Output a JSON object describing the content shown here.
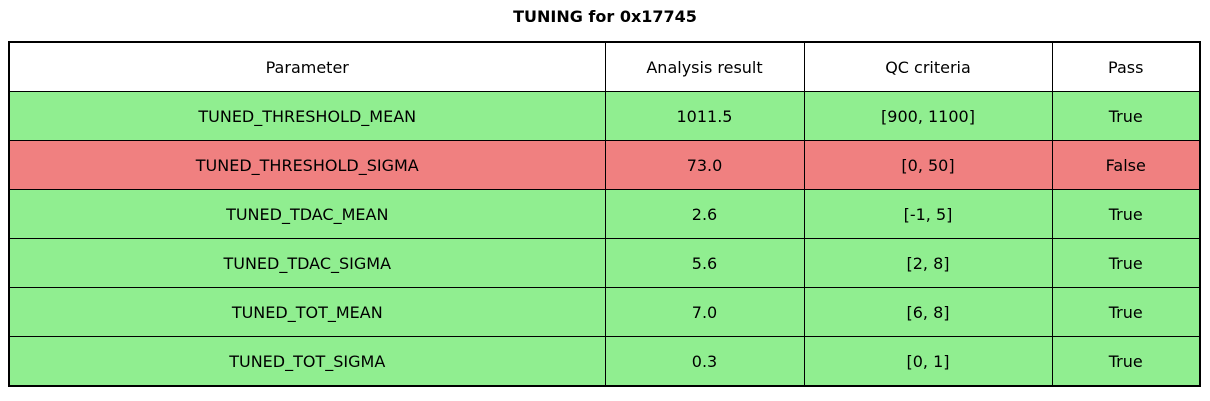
{
  "title": "TUNING for 0x17745",
  "colors": {
    "pass_green": "#90ee90",
    "fail_red": "#f08080",
    "header_bg": "#ffffff",
    "border": "#000000",
    "text": "#000000"
  },
  "chart_data": {
    "type": "table",
    "title": "TUNING for 0x17745",
    "columns": [
      "Parameter",
      "Analysis result",
      "QC criteria",
      "Pass"
    ],
    "rows": [
      {
        "parameter": "TUNED_THRESHOLD_MEAN",
        "analysis_result": "1011.5",
        "qc_criteria": "[900, 1100]",
        "pass": "True",
        "status": "pass"
      },
      {
        "parameter": "TUNED_THRESHOLD_SIGMA",
        "analysis_result": "73.0",
        "qc_criteria": "[0, 50]",
        "pass": "False",
        "status": "fail"
      },
      {
        "parameter": "TUNED_TDAC_MEAN",
        "analysis_result": "2.6",
        "qc_criteria": "[-1, 5]",
        "pass": "True",
        "status": "pass"
      },
      {
        "parameter": "TUNED_TDAC_SIGMA",
        "analysis_result": "5.6",
        "qc_criteria": "[2, 8]",
        "pass": "True",
        "status": "pass"
      },
      {
        "parameter": "TUNED_TOT_MEAN",
        "analysis_result": "7.0",
        "qc_criteria": "[6, 8]",
        "pass": "True",
        "status": "pass"
      },
      {
        "parameter": "TUNED_TOT_SIGMA",
        "analysis_result": "0.3",
        "qc_criteria": "[0, 1]",
        "pass": "True",
        "status": "pass"
      }
    ]
  }
}
